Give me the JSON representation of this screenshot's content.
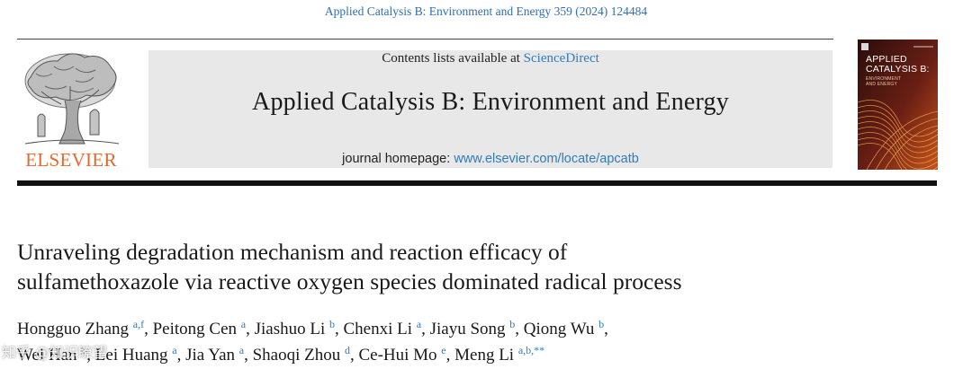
{
  "header": {
    "citation": "Applied Catalysis B: Environment and Energy 359 (2024) 124484",
    "contents_prefix": "Contents lists available at ",
    "contents_link": "ScienceDirect",
    "journal_title": "Applied Catalysis B: Environment and Energy",
    "homepage_prefix": "journal homepage: ",
    "homepage_link": "www.elsevier.com/locate/apcatb",
    "publisher": "ELSEVIER"
  },
  "cover": {
    "title_line1": "APPLIED",
    "title_line2": "CATALYSIS B:",
    "subtitle_line1": "ENVIRONMENT",
    "subtitle_line2": "AND ENERGY"
  },
  "article": {
    "title_line1": "Unraveling degradation mechanism and reaction efficacy of",
    "title_line2": "sulfamethoxazole via reactive oxygen species dominated radical process",
    "authors": [
      {
        "name": "Hongguo Zhang",
        "aff": "a,f"
      },
      {
        "name": "Peitong Cen",
        "aff": "a"
      },
      {
        "name": "Jiashuo Li",
        "aff": "b"
      },
      {
        "name": "Chenxi Li",
        "aff": "a"
      },
      {
        "name": "Jiayu Song",
        "aff": "b"
      },
      {
        "name": "Qiong Wu",
        "aff": "b"
      },
      {
        "name": "Wei Han",
        "aff": "b"
      },
      {
        "name": "Lei Huang",
        "aff": "a"
      },
      {
        "name": "Jia Yan",
        "aff": "a"
      },
      {
        "name": "Shaoqi Zhou",
        "aff": "d"
      },
      {
        "name": "Ce-Hui Mo",
        "aff": "e"
      },
      {
        "name": "Meng Li",
        "aff": "a,b,**"
      }
    ]
  },
  "watermark": "知乎 @知识瞭望",
  "colors": {
    "link_blue": "#2f7cbf",
    "elsevier_orange": "#e8692a",
    "masthead_gray": "#e8e8e8",
    "cover_dark_red": "#3a1410"
  }
}
